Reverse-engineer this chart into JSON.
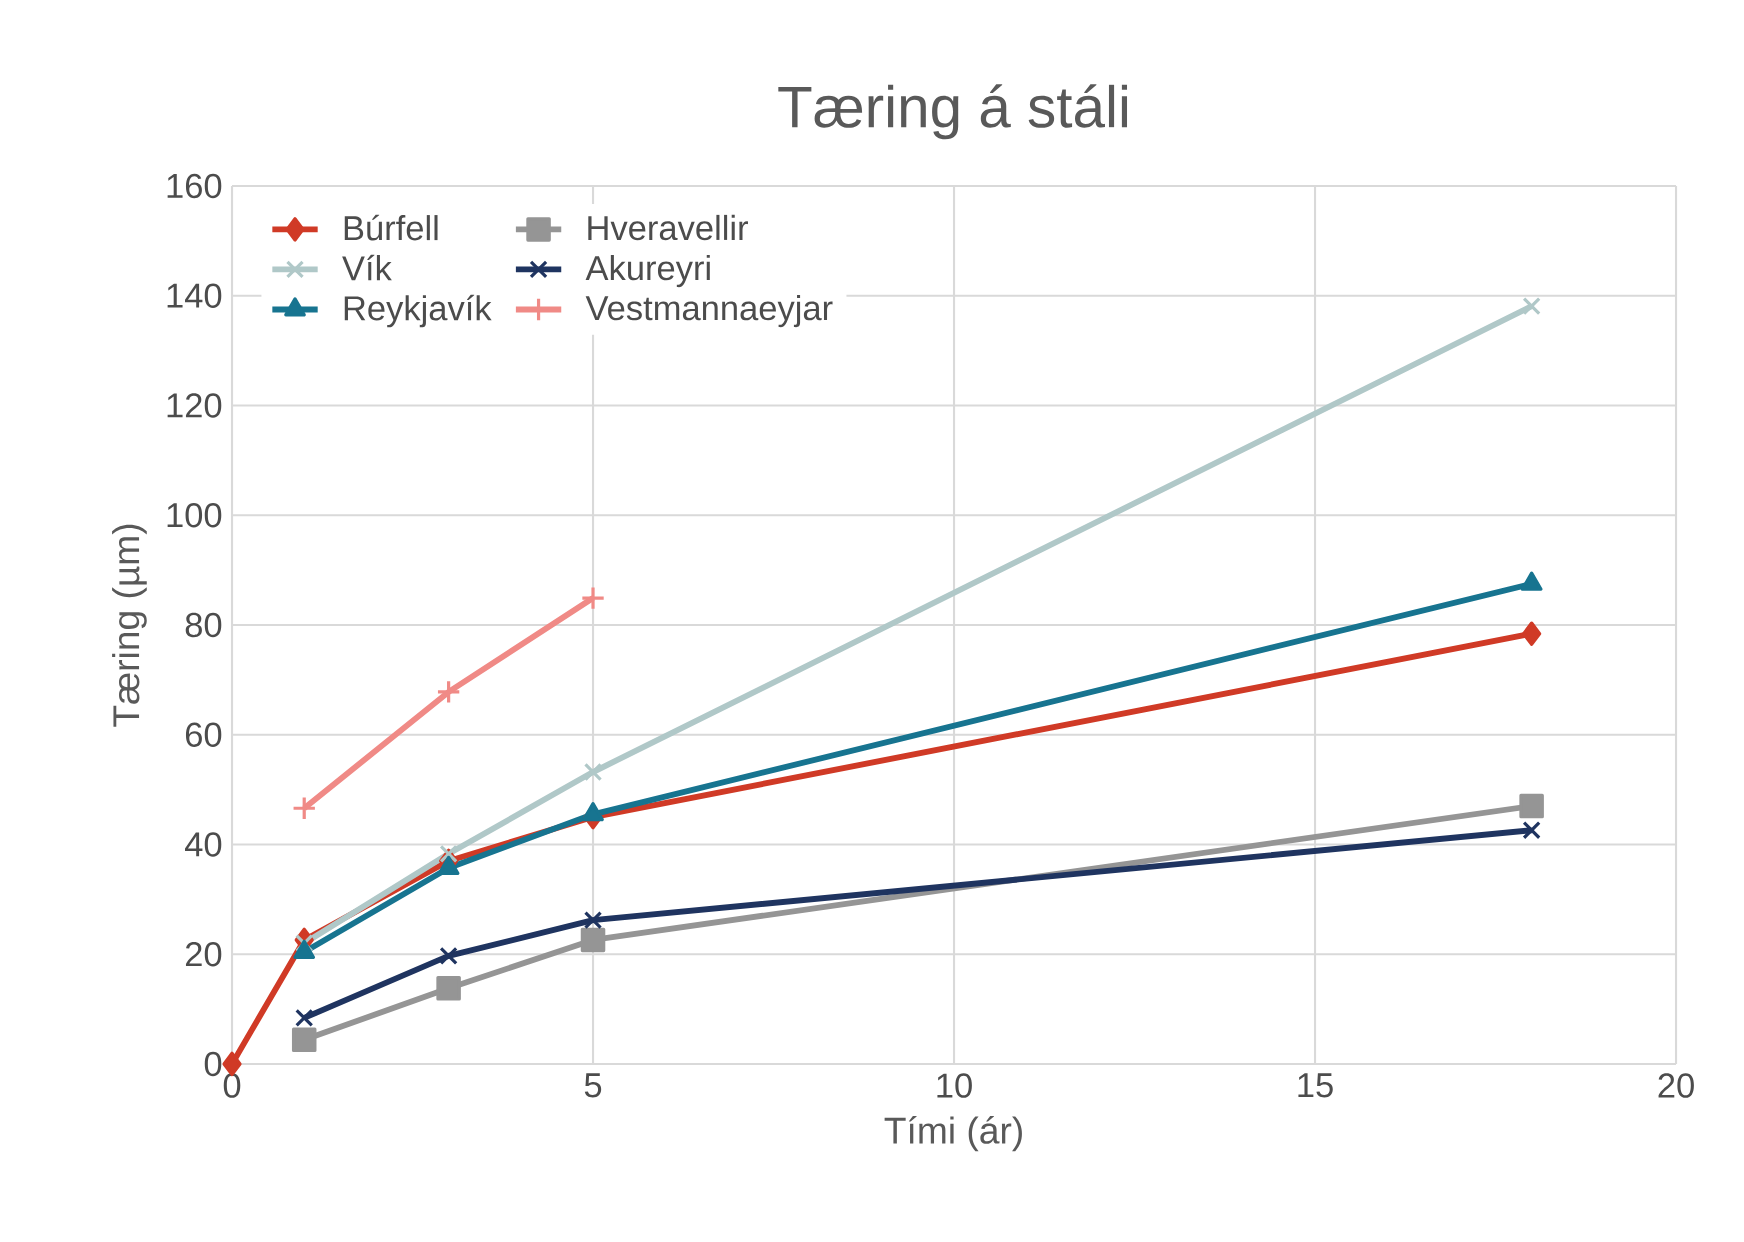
{
  "chart_data": {
    "type": "line",
    "title": "Tæring á stáli",
    "xlabel": "Tími (ár)",
    "ylabel": "Tæring (µm)",
    "xlim": [
      0,
      20
    ],
    "xticks": [
      0,
      5,
      10,
      15,
      20
    ],
    "ylim": [
      0,
      160
    ],
    "yticks": [
      0,
      20,
      40,
      60,
      80,
      100,
      120,
      140,
      160
    ],
    "grid": true,
    "legend": "top left",
    "series": [
      {
        "name": "Búrfell",
        "color": "#d03a26",
        "marker": "diamond",
        "x": [
          0,
          1,
          3,
          5,
          18
        ],
        "values": [
          0,
          22.6,
          37,
          45,
          78.4
        ]
      },
      {
        "name": "Hveravellir",
        "color": "#959595",
        "marker": "square",
        "x": [
          1,
          3,
          5,
          18
        ],
        "values": [
          4.4,
          13.8,
          22.6,
          47
        ]
      },
      {
        "name": "Vík",
        "color": "#b0c8c8",
        "marker": "cross",
        "x": [
          1,
          3,
          5,
          18
        ],
        "values": [
          22,
          38.3,
          53.2,
          138.1
        ]
      },
      {
        "name": "Akureyri",
        "color": "#1f3460",
        "marker": "cross",
        "x": [
          1,
          3,
          5,
          18
        ],
        "values": [
          8.4,
          19.7,
          26.2,
          42.6
        ]
      },
      {
        "name": "Reykjavík",
        "color": "#177490",
        "marker": "triangle",
        "x": [
          1,
          3,
          5,
          18
        ],
        "values": [
          20.4,
          35.7,
          45.5,
          87.5
        ]
      },
      {
        "name": "Vestmannaeyjar",
        "color": "#f08a86",
        "marker": "plus",
        "x": [
          1,
          3,
          5
        ],
        "values": [
          46.6,
          67.8,
          84.9
        ]
      }
    ]
  }
}
